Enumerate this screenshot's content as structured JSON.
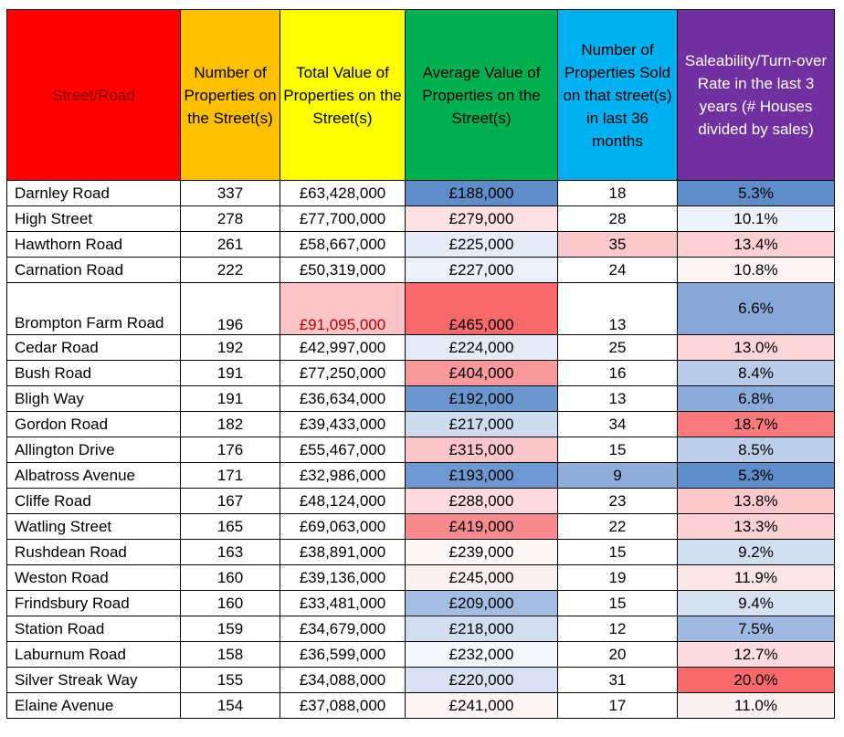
{
  "headers": {
    "street": "Street/Road",
    "num_properties": "Number of Properties on the Street(s)",
    "total_value": "Total Value of Properties on the Street(s)",
    "avg_value": "Average Value of Properties on the Street(s)",
    "sold": "Number of Properties Sold on that street(s) in last 36 months",
    "rate": "Saleability/Turn-over Rate in the last 3 years (# Houses divided by sales)"
  },
  "colors": {
    "street_header": "#ff0000",
    "num_header": "#ffc000",
    "total_header": "#ffff00",
    "avg_header": "#00b050",
    "sold_header": "#00b0f0",
    "rate_header": "#7030a0"
  },
  "rows": [
    {
      "street": "Darnley Road",
      "num": "337",
      "total": "£63,428,000",
      "avg": "£188,000",
      "sold": "18",
      "rate": "5.3%",
      "avg_bg": "#5f8dca",
      "total_bg": "#ffffff",
      "sold_bg": "#ffffff",
      "rate_bg": "#5f8dca"
    },
    {
      "street": "High Street",
      "num": "278",
      "total": "£77,700,000",
      "avg": "£279,000",
      "sold": "28",
      "rate": "10.1%",
      "avg_bg": "#fde0e2",
      "total_bg": "#ffffff",
      "sold_bg": "#ffffff",
      "rate_bg": "#eef2fa"
    },
    {
      "street": "Hawthorn Road",
      "num": "261",
      "total": "£58,667,000",
      "avg": "£225,000",
      "sold": "35",
      "rate": "13.4%",
      "avg_bg": "#e6ecf7",
      "total_bg": "#ffffff",
      "sold_bg": "#fbc8cb",
      "rate_bg": "#fbd0d3"
    },
    {
      "street": "Carnation Road",
      "num": "222",
      "total": "£50,319,000",
      "avg": "£227,000",
      "sold": "24",
      "rate": "10.8%",
      "avg_bg": "#ebf0f9",
      "total_bg": "#ffffff",
      "sold_bg": "#ffffff",
      "rate_bg": "#fdf4f5"
    },
    {
      "street": "Brompton Farm Road",
      "num": "196",
      "total": "£91,095,000",
      "avg": "£465,000",
      "sold": "13",
      "rate": "6.6%",
      "avg_bg": "#f8696b",
      "total_bg": "#fdc4c7",
      "sold_bg": "#ffffff",
      "rate_bg": "#86a7d8",
      "tall": true,
      "total_red": true
    },
    {
      "street": "Cedar Road",
      "num": "192",
      "total": "£42,997,000",
      "avg": "£224,000",
      "sold": "25",
      "rate": "13.0%",
      "avg_bg": "#e4ebf7",
      "total_bg": "#ffffff",
      "sold_bg": "#ffffff",
      "rate_bg": "#fcd6d8"
    },
    {
      "street": "Bush Road",
      "num": "191",
      "total": "£77,250,000",
      "avg": "£404,000",
      "sold": "16",
      "rate": "8.4%",
      "avg_bg": "#f9999b",
      "total_bg": "#ffffff",
      "sold_bg": "#ffffff",
      "rate_bg": "#b8cbe8"
    },
    {
      "street": "Bligh Way",
      "num": "191",
      "total": "£36,634,000",
      "avg": "£192,000",
      "sold": "13",
      "rate": "6.8%",
      "avg_bg": "#6b96ce",
      "total_bg": "#ffffff",
      "sold_bg": "#ffffff",
      "rate_bg": "#8babda"
    },
    {
      "street": "Gordon Road",
      "num": "182",
      "total": "£39,433,000",
      "avg": "£217,000",
      "sold": "34",
      "rate": "18.7%",
      "avg_bg": "#cfdbef",
      "total_bg": "#ffffff",
      "sold_bg": "#ffffff",
      "rate_bg": "#f97a7d"
    },
    {
      "street": "Allington Drive",
      "num": "176",
      "total": "£55,467,000",
      "avg": "£315,000",
      "sold": "15",
      "rate": "8.5%",
      "avg_bg": "#fbc6c9",
      "total_bg": "#ffffff",
      "sold_bg": "#ffffff",
      "rate_bg": "#bccee9"
    },
    {
      "street": "Albatross Avenue",
      "num": "171",
      "total": "£32,986,000",
      "avg": "£193,000",
      "sold": "9",
      "rate": "5.3%",
      "avg_bg": "#6e98cf",
      "total_bg": "#ffffff",
      "sold_bg": "#8eaddb",
      "rate_bg": "#5f8dca"
    },
    {
      "street": "Cliffe Road",
      "num": "167",
      "total": "£48,124,000",
      "avg": "£288,000",
      "sold": "23",
      "rate": "13.8%",
      "avg_bg": "#fcdadd",
      "total_bg": "#ffffff",
      "sold_bg": "#ffffff",
      "rate_bg": "#fbc9cc"
    },
    {
      "street": "Watling Street",
      "num": "165",
      "total": "£69,063,000",
      "avg": "£419,000",
      "sold": "22",
      "rate": "13.3%",
      "avg_bg": "#f98b8e",
      "total_bg": "#ffffff",
      "sold_bg": "#ffffff",
      "rate_bg": "#fcd1d4"
    },
    {
      "street": "Rushdean Road",
      "num": "163",
      "total": "£38,891,000",
      "avg": "£239,000",
      "sold": "15",
      "rate": "9.2%",
      "avg_bg": "#fdf6f7",
      "total_bg": "#ffffff",
      "sold_bg": "#ffffff",
      "rate_bg": "#d1ddf0"
    },
    {
      "street": "Weston Road",
      "num": "160",
      "total": "£39,136,000",
      "avg": "£245,000",
      "sold": "19",
      "rate": "11.9%",
      "avg_bg": "#fdf0f1",
      "total_bg": "#ffffff",
      "sold_bg": "#ffffff",
      "rate_bg": "#fce5e7"
    },
    {
      "street": "Frindsbury Road",
      "num": "160",
      "total": "£33,481,000",
      "avg": "£209,000",
      "sold": "15",
      "rate": "9.4%",
      "avg_bg": "#a5bde2",
      "total_bg": "#ffffff",
      "sold_bg": "#ffffff",
      "rate_bg": "#d6e1f2"
    },
    {
      "street": "Station Road",
      "num": "159",
      "total": "£34,679,000",
      "avg": "£218,000",
      "sold": "12",
      "rate": "7.5%",
      "avg_bg": "#d2ddf0",
      "total_bg": "#ffffff",
      "sold_bg": "#ffffff",
      "rate_bg": "#a0b9e0"
    },
    {
      "street": "Laburnum Road",
      "num": "158",
      "total": "£36,599,000",
      "avg": "£232,000",
      "sold": "20",
      "rate": "12.7%",
      "avg_bg": "#f3f6fb",
      "total_bg": "#ffffff",
      "sold_bg": "#ffffff",
      "rate_bg": "#fcdcde"
    },
    {
      "street": "Silver Streak Way",
      "num": "155",
      "total": "£34,088,000",
      "avg": "£220,000",
      "sold": "31",
      "rate": "20.0%",
      "avg_bg": "#d8e2f2",
      "total_bg": "#ffffff",
      "sold_bg": "#ffffff",
      "rate_bg": "#f8696b"
    },
    {
      "street": "Elaine Avenue",
      "num": "154",
      "total": "£37,088,000",
      "avg": "£241,000",
      "sold": "17",
      "rate": "11.0%",
      "avg_bg": "#fdf4f5",
      "total_bg": "#ffffff",
      "sold_bg": "#ffffff",
      "rate_bg": "#fdf2f3"
    }
  ]
}
